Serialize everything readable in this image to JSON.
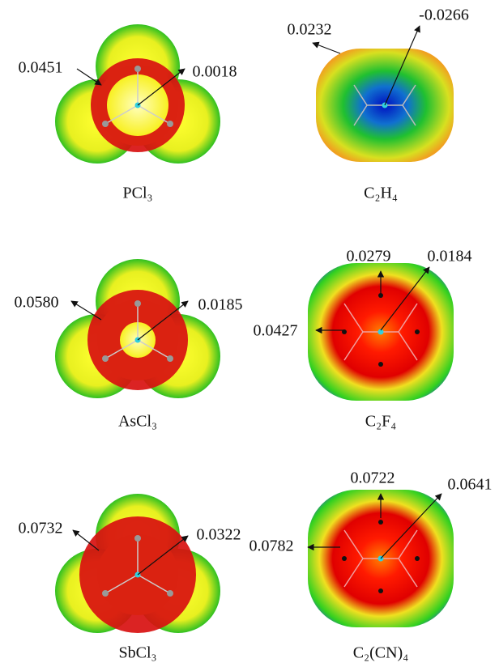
{
  "panels": [
    {
      "label": "PCl₃",
      "annotations": [
        "0.0451",
        "0.0018"
      ]
    },
    {
      "label": "C₂H₄",
      "annotations": [
        "0.0232",
        "-0.0266"
      ]
    },
    {
      "label": "AsCl₃",
      "annotations": [
        "0.0580",
        "0.0185"
      ]
    },
    {
      "label": "C₂F₄",
      "annotations": [
        "0.0279",
        "0.0184",
        "0.0427"
      ]
    },
    {
      "label": "SbCl₃",
      "annotations": [
        "0.0732",
        "0.0322"
      ]
    },
    {
      "label": "C₂(CN)₄",
      "annotations": [
        "0.0722",
        "0.0641",
        "0.0782"
      ]
    }
  ]
}
